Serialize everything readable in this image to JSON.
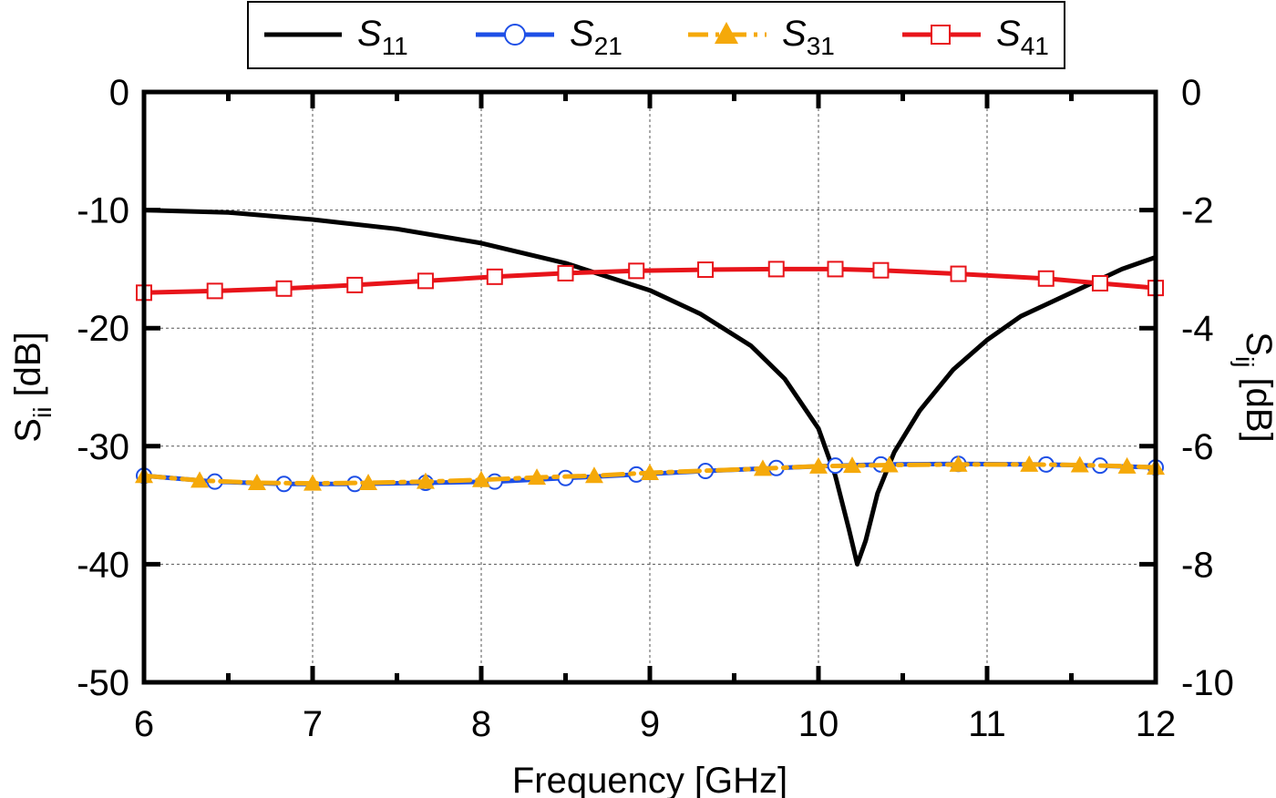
{
  "chart_data": {
    "type": "line",
    "xlabel": "Frequency [GHz]",
    "ylabel_left": "S",
    "ylabel_left_sub": "ii",
    "ylabel_left_unit": " [dB]",
    "ylabel_right": "S",
    "ylabel_right_sub": "ij",
    "ylabel_right_unit": " [dB]",
    "xlim": [
      6,
      12
    ],
    "ylim_left": [
      -50,
      0
    ],
    "ylim_right": [
      -10,
      0
    ],
    "x_ticks": [
      "6",
      "7",
      "8",
      "9",
      "10",
      "11",
      "12"
    ],
    "y_ticks_left": [
      "0",
      "-10",
      "-20",
      "-30",
      "-40",
      "-50"
    ],
    "y_ticks_right": [
      "0",
      "-2",
      "-4",
      "-6",
      "-8",
      "-10"
    ],
    "grid": true,
    "legend_position": "top",
    "series": [
      {
        "name": "S",
        "sub": "11",
        "axis": "left",
        "color": "#000000",
        "marker": "none",
        "dash": "solid",
        "x": [
          6.0,
          6.5,
          7.0,
          7.5,
          8.0,
          8.5,
          9.0,
          9.3,
          9.6,
          9.8,
          10.0,
          10.1,
          10.18,
          10.23,
          10.28,
          10.35,
          10.45,
          10.6,
          10.8,
          11.0,
          11.2,
          11.5,
          11.8,
          12.0
        ],
        "y": [
          -10.0,
          -10.2,
          -10.8,
          -11.6,
          -12.8,
          -14.5,
          -16.8,
          -18.8,
          -21.5,
          -24.3,
          -28.5,
          -32.5,
          -37.0,
          -40.0,
          -38.0,
          -34.0,
          -30.5,
          -27.0,
          -23.5,
          -21.0,
          -19.0,
          -17.0,
          -15.0,
          -14.0
        ]
      },
      {
        "name": "S",
        "sub": "21",
        "axis": "right",
        "color": "#1E4FE6",
        "marker": "circle",
        "dash": "solid",
        "x": [
          6.0,
          6.42,
          6.83,
          7.25,
          7.67,
          8.08,
          8.5,
          8.92,
          9.33,
          9.75,
          10.1,
          10.37,
          10.83,
          11.35,
          11.67,
          12.0
        ],
        "y": [
          -6.5,
          -6.6,
          -6.64,
          -6.64,
          -6.62,
          -6.6,
          -6.54,
          -6.48,
          -6.42,
          -6.37,
          -6.33,
          -6.31,
          -6.3,
          -6.31,
          -6.33,
          -6.36
        ]
      },
      {
        "name": "S",
        "sub": "31",
        "axis": "right",
        "color": "#F5A90A",
        "marker": "triangle",
        "dash": "dashdot",
        "x": [
          6.0,
          6.33,
          6.67,
          7.0,
          7.33,
          7.67,
          8.0,
          8.33,
          8.67,
          9.0,
          9.67,
          10.0,
          10.2,
          10.42,
          10.83,
          11.25,
          11.55,
          11.83,
          12.0
        ],
        "y": [
          -6.5,
          -6.58,
          -6.62,
          -6.63,
          -6.62,
          -6.6,
          -6.57,
          -6.53,
          -6.5,
          -6.45,
          -6.38,
          -6.34,
          -6.33,
          -6.32,
          -6.31,
          -6.31,
          -6.32,
          -6.34,
          -6.36
        ]
      },
      {
        "name": "S",
        "sub": "41",
        "axis": "right",
        "color": "#E8141A",
        "marker": "square",
        "dash": "solid",
        "x": [
          6.0,
          6.42,
          6.83,
          7.25,
          7.67,
          8.08,
          8.5,
          8.92,
          9.33,
          9.75,
          10.1,
          10.37,
          10.83,
          11.35,
          11.67,
          12.0
        ],
        "y": [
          -3.4,
          -3.37,
          -3.33,
          -3.27,
          -3.2,
          -3.13,
          -3.07,
          -3.03,
          -3.01,
          -3.0,
          -3.0,
          -3.02,
          -3.08,
          -3.16,
          -3.24,
          -3.32
        ]
      }
    ]
  }
}
